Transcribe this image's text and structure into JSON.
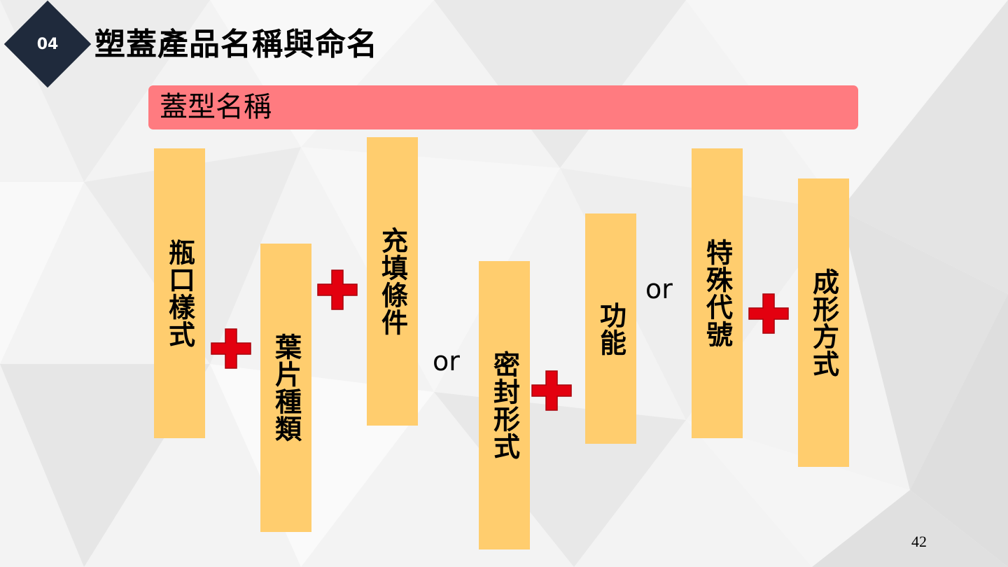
{
  "header": {
    "section_number": "04",
    "title": "塑蓋產品名稱與命名"
  },
  "banner": {
    "label": "蓋型名稱"
  },
  "bars": [
    {
      "label": "瓶口樣式"
    },
    {
      "label": "葉片種類"
    },
    {
      "label": "充填條件"
    },
    {
      "label": "密封形式"
    },
    {
      "label": "功能"
    },
    {
      "label": "特殊代號"
    },
    {
      "label": "成形方式"
    }
  ],
  "connectors": {
    "or_1": "or",
    "or_2": "or"
  },
  "footer": {
    "page_number": "42"
  },
  "colors": {
    "badge": "#1f2a3c",
    "banner": "#ff7b80",
    "bar": "#ffcd6e",
    "plus": "#e3000f"
  }
}
